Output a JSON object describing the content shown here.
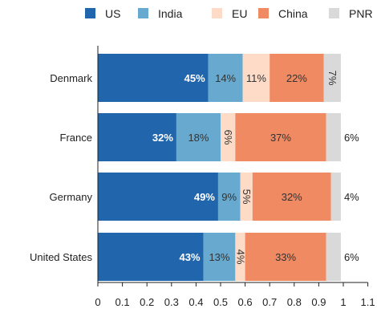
{
  "chart_data": {
    "type": "bar",
    "orientation": "horizontal",
    "stacked": true,
    "title": "",
    "xlabel": "",
    "ylabel": "",
    "categories": [
      "Denmark",
      "France",
      "Germany",
      "United States"
    ],
    "series": [
      {
        "name": "US",
        "color": "#2166ac",
        "values": [
          0.45,
          0.32,
          0.49,
          0.43
        ],
        "labels": [
          "45%",
          "32%",
          "49%",
          "43%"
        ]
      },
      {
        "name": "India",
        "color": "#67a9cf",
        "values": [
          0.14,
          0.18,
          0.09,
          0.13
        ],
        "labels": [
          "14%",
          "18%",
          "9%",
          "13%"
        ]
      },
      {
        "name": "EU",
        "color": "#fddbc7",
        "values": [
          0.11,
          0.06,
          0.05,
          0.04
        ],
        "labels": [
          "11%",
          "6%",
          "5%",
          "4%"
        ]
      },
      {
        "name": "China",
        "color": "#ef8a62",
        "values": [
          0.22,
          0.37,
          0.32,
          0.33
        ],
        "labels": [
          "22%",
          "37%",
          "32%",
          "33%"
        ]
      },
      {
        "name": "PNR",
        "color": "#d9d9d9",
        "values": [
          0.07,
          0.06,
          0.04,
          0.06
        ],
        "labels": [
          "7%",
          "6%",
          "4%",
          "6%"
        ]
      }
    ],
    "xlim": [
      0,
      1.1
    ],
    "xticks": [
      "0",
      "0.1",
      "0.2",
      "0.3",
      "0.4",
      "0.5",
      "0.6",
      "0.7",
      "0.8",
      "0.9",
      "1",
      "1.1"
    ],
    "legend_position": "top",
    "grid": false
  }
}
